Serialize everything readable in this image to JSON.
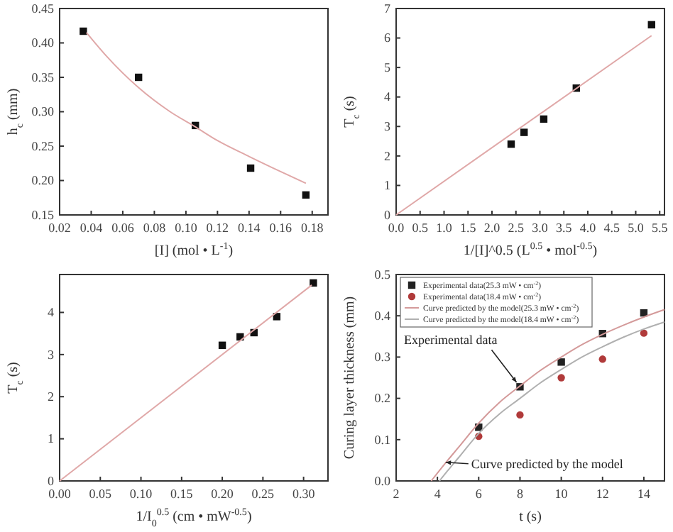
{
  "chart_data": [
    {
      "type": "scatter",
      "xlabel": "[I] (mol • L$^{-1}$)",
      "ylabel": "h$_{c}$ (mm)",
      "xlim": [
        0.02,
        0.19
      ],
      "ylim": [
        0.15,
        0.45
      ],
      "xticks": [
        {
          "value": 0.02,
          "label": "0.02"
        },
        {
          "value": 0.04,
          "label": "0.04"
        },
        {
          "value": 0.06,
          "label": "0.06"
        },
        {
          "value": 0.08,
          "label": "0.08"
        },
        {
          "value": 0.1,
          "label": "0.10"
        },
        {
          "value": 0.12,
          "label": "0.12"
        },
        {
          "value": 0.14,
          "label": "0.14"
        },
        {
          "value": 0.16,
          "label": "0.16"
        },
        {
          "value": 0.18,
          "label": "0.18"
        }
      ],
      "yticks": [
        0.15,
        {
          "value": 0.2,
          "label": "0.20"
        },
        0.25,
        {
          "value": 0.3,
          "label": "0.30"
        },
        0.35,
        {
          "value": 0.4,
          "label": "0.40"
        },
        0.45
      ],
      "series": [
        {
          "type": "scatter",
          "marker": "square",
          "color": "#111111",
          "x": [
            0.035,
            0.07,
            0.106,
            0.141,
            0.176
          ],
          "values": [
            0.417,
            0.35,
            0.28,
            0.218,
            0.179
          ]
        },
        {
          "type": "line",
          "marker": "none",
          "color": "#e0a8a8",
          "x": [
            0.037,
            0.05,
            0.07,
            0.09,
            0.106,
            0.12,
            0.14,
            0.16,
            0.176
          ],
          "values": [
            0.415,
            0.38,
            0.335,
            0.3,
            0.278,
            0.258,
            0.235,
            0.213,
            0.196
          ]
        }
      ]
    },
    {
      "type": "scatter",
      "xlabel": "1/[I]^0.5 (L$^{0.5}$ • mol$^{-0.5}$)",
      "ylabel": "T$_{c}$ (s)",
      "xlim": [
        0,
        5.6
      ],
      "ylim": [
        0,
        7
      ],
      "xticks": [
        {
          "value": 0,
          "label": "0.0"
        },
        0.5,
        {
          "value": 1,
          "label": "1.0"
        },
        1.5,
        {
          "value": 2,
          "label": "2.0"
        },
        2.5,
        {
          "value": 3,
          "label": "3.0"
        },
        3.5,
        {
          "value": 4,
          "label": "4.0"
        },
        4.5,
        {
          "value": 5,
          "label": "5.0"
        },
        5.5
      ],
      "yticks": [
        0,
        1,
        2,
        3,
        4,
        5,
        6,
        7
      ],
      "series": [
        {
          "type": "scatter",
          "marker": "square",
          "color": "#111111",
          "x": [
            2.4,
            2.67,
            3.08,
            3.76,
            5.33
          ],
          "values": [
            2.4,
            2.8,
            3.25,
            4.3,
            6.45
          ]
        },
        {
          "type": "line",
          "marker": "none",
          "color": "#e0a8a8",
          "x": [
            0,
            5.33
          ],
          "values": [
            0,
            6.08
          ]
        }
      ]
    },
    {
      "type": "scatter",
      "xlabel": "1/I$_{0}$$^{0.5}$ (cm • mW$^{-0.5}$)",
      "ylabel": "T$_{c}$ (s)",
      "xlim": [
        0,
        0.33
      ],
      "ylim": [
        0,
        4.9
      ],
      "xticks": [
        {
          "value": 0,
          "label": "0.00"
        },
        0.05,
        {
          "value": 0.1,
          "label": "0.10"
        },
        0.15,
        {
          "value": 0.2,
          "label": "0.20"
        },
        0.25,
        {
          "value": 0.3,
          "label": "0.30"
        }
      ],
      "yticks": [
        0,
        1,
        2,
        3,
        4
      ],
      "series": [
        {
          "type": "scatter",
          "marker": "square",
          "color": "#111111",
          "x": [
            0.2,
            0.222,
            0.239,
            0.267,
            0.312
          ],
          "values": [
            3.22,
            3.42,
            3.52,
            3.9,
            4.7
          ]
        },
        {
          "type": "line",
          "marker": "none",
          "color": "#e0a8a8",
          "x": [
            0,
            0.31
          ],
          "values": [
            0,
            4.65
          ]
        }
      ]
    },
    {
      "type": "scatter",
      "xlabel": "t (s)",
      "ylabel": "Curing layer thickness (mm)",
      "xlim": [
        2,
        15
      ],
      "ylim": [
        0,
        0.5
      ],
      "legend": "top left",
      "xticks": [
        2,
        4,
        6,
        8,
        10,
        12,
        14
      ],
      "yticks": [
        {
          "value": 0,
          "label": "0.0"
        },
        0.1,
        0.2,
        0.3,
        0.4,
        0.5
      ],
      "annotations": [
        {
          "text": "Experimental data",
          "x": 8,
          "y": 0.228
        },
        {
          "text": "Curve predicted by the model",
          "x": 4.4,
          "y": 0.045
        }
      ],
      "series": [
        {
          "type": "scatter",
          "marker": "square",
          "name": "Experimental data(25.3 mW • cm$^{-2}$)",
          "color": "#222222",
          "x": [
            6,
            8,
            10,
            12,
            14
          ],
          "values": [
            0.13,
            0.228,
            0.288,
            0.357,
            0.407
          ]
        },
        {
          "type": "scatter",
          "marker": "circle",
          "name": "Experimental data(18.4 mW • cm$^{-2}$)",
          "color": "#b03a3a",
          "x": [
            6,
            8,
            10,
            12,
            14
          ],
          "values": [
            0.108,
            0.16,
            0.25,
            0.295,
            0.358
          ]
        },
        {
          "type": "line",
          "marker": "none",
          "name": "Curve predicted by the model(25.3 mW • cm$^{-2}$)",
          "color": "#d49a9a",
          "x": [
            3.7,
            4.5,
            5,
            6,
            7,
            8,
            9,
            10,
            11,
            12,
            13,
            14,
            15
          ],
          "values": [
            0,
            0.05,
            0.08,
            0.14,
            0.19,
            0.23,
            0.268,
            0.3,
            0.33,
            0.355,
            0.377,
            0.397,
            0.415
          ]
        },
        {
          "type": "line",
          "marker": "none",
          "name": "Curve predicted by the model(18.4 mW • cm$^{-2}$)",
          "color": "#b0b0b0",
          "x": [
            4.1,
            4.5,
            5,
            6,
            7,
            8,
            9,
            10,
            11,
            12,
            13,
            14,
            15
          ],
          "values": [
            0,
            0.025,
            0.055,
            0.115,
            0.162,
            0.2,
            0.238,
            0.27,
            0.3,
            0.325,
            0.348,
            0.368,
            0.385
          ]
        }
      ]
    }
  ]
}
